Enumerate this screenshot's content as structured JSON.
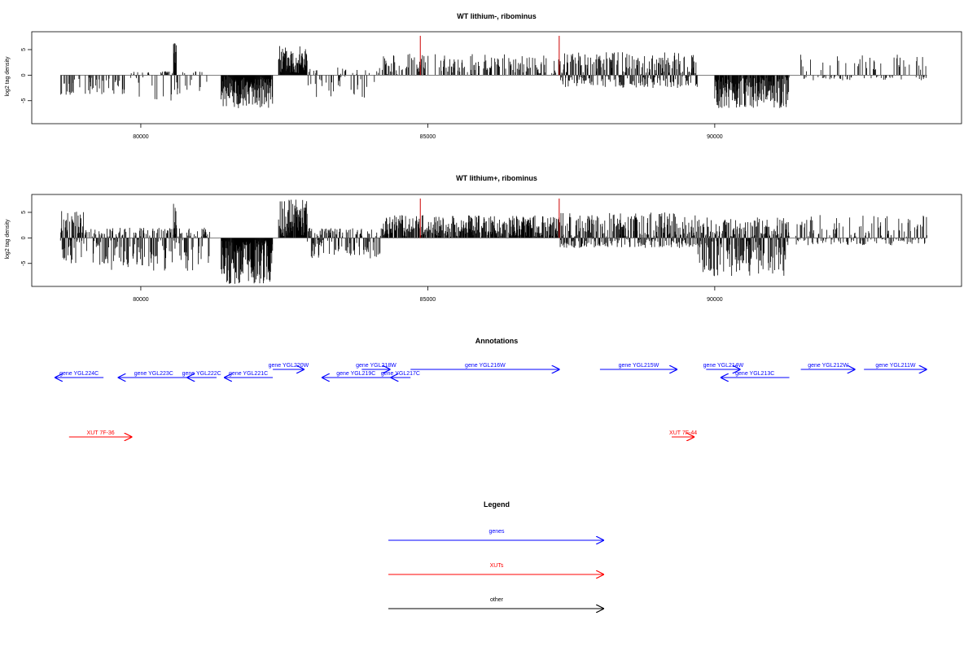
{
  "chart_data": [
    {
      "type": "bar",
      "title": "WT lithium-, ribominus",
      "ylabel": "log2 tag density",
      "xlabel": "",
      "xlim": [
        78100,
        94300
      ],
      "ylim": [
        -9.5,
        8.5
      ],
      "x_ticks": [
        80000,
        85000,
        90000
      ],
      "x_tick_labels": [
        "80000",
        "85000",
        "90000"
      ],
      "y_ticks": [
        -5,
        0,
        5
      ],
      "y_tick_labels": [
        "-5",
        "0",
        "5"
      ],
      "grid": false,
      "highlight_color": "#cc0000",
      "highlights": [
        {
          "x": 84870,
          "y": 7.7
        },
        {
          "x": 87290,
          "y": 7.7
        }
      ],
      "segments": [
        {
          "start": 78600,
          "end": 79700,
          "min": -4.0,
          "max": 0,
          "density": 0.35,
          "seed": 1
        },
        {
          "start": 79700,
          "end": 81200,
          "min": -5.0,
          "max": 0.8,
          "density": 0.3,
          "seed": 2
        },
        {
          "start": 80570,
          "end": 80620,
          "min": 0,
          "max": 6.5,
          "density": 1.0,
          "seed": 3
        },
        {
          "start": 81400,
          "end": 82300,
          "min": -6.5,
          "max": 0,
          "density": 1.0,
          "seed": 4
        },
        {
          "start": 82400,
          "end": 82900,
          "min": 0,
          "max": 5.8,
          "density": 1.0,
          "seed": 5
        },
        {
          "start": 82900,
          "end": 84200,
          "min": -4.5,
          "max": 1.5,
          "density": 0.25,
          "seed": 6
        },
        {
          "start": 84200,
          "end": 87300,
          "min": 0,
          "max": 4.2,
          "density": 0.35,
          "seed": 7
        },
        {
          "start": 87300,
          "end": 89700,
          "min": -2.5,
          "max": 4.5,
          "density": 0.8,
          "seed": 8
        },
        {
          "start": 90000,
          "end": 91300,
          "min": -6.5,
          "max": 0,
          "density": 0.9,
          "seed": 9
        },
        {
          "start": 91500,
          "end": 93700,
          "min": -1.0,
          "max": 4.5,
          "density": 0.3,
          "seed": 10
        }
      ]
    },
    {
      "type": "bar",
      "title": "WT lithium+, ribominus",
      "ylabel": "log2 tag density",
      "xlabel": "",
      "xlim": [
        78100,
        94300
      ],
      "ylim": [
        -9.5,
        8.5
      ],
      "x_ticks": [
        80000,
        85000,
        90000
      ],
      "x_tick_labels": [
        "80000",
        "85000",
        "90000"
      ],
      "y_ticks": [
        -5,
        0,
        5
      ],
      "y_tick_labels": [
        "-5",
        "0",
        "5"
      ],
      "grid": false,
      "highlight_color": "#cc0000",
      "highlights": [
        {
          "x": 84870,
          "y": 7.7
        },
        {
          "x": 87290,
          "y": 7.7
        }
      ],
      "segments": [
        {
          "start": 78600,
          "end": 79000,
          "min": -5.0,
          "max": 5.5,
          "density": 1.0,
          "seed": 11
        },
        {
          "start": 79000,
          "end": 81200,
          "min": -6.5,
          "max": 2.0,
          "density": 0.7,
          "seed": 12
        },
        {
          "start": 80570,
          "end": 80620,
          "min": 0,
          "max": 7.5,
          "density": 1.0,
          "seed": 13
        },
        {
          "start": 81400,
          "end": 82300,
          "min": -9.0,
          "max": 0,
          "density": 1.0,
          "seed": 14
        },
        {
          "start": 82400,
          "end": 82900,
          "min": 0,
          "max": 7.5,
          "density": 1.0,
          "seed": 15
        },
        {
          "start": 82900,
          "end": 84200,
          "min": -4.0,
          "max": 2.0,
          "density": 0.7,
          "seed": 16
        },
        {
          "start": 84200,
          "end": 87300,
          "min": 0,
          "max": 4.5,
          "density": 0.8,
          "seed": 17
        },
        {
          "start": 87300,
          "end": 89700,
          "min": -2.0,
          "max": 5.0,
          "density": 0.9,
          "seed": 18
        },
        {
          "start": 89700,
          "end": 91300,
          "min": -7.5,
          "max": 4.0,
          "density": 1.0,
          "seed": 19
        },
        {
          "start": 91400,
          "end": 93700,
          "min": -1.5,
          "max": 4.5,
          "density": 0.5,
          "seed": 20
        }
      ]
    }
  ],
  "annotations": {
    "title": "Annotations",
    "colors": {
      "gene": "#0000ff",
      "xut": "#ff0000",
      "other": "#000000"
    },
    "genes": [
      {
        "label": "gene YGL224C",
        "start": 78500,
        "end": 79350,
        "strand": "-"
      },
      {
        "label": "gene YGL223C",
        "start": 79600,
        "end": 80850,
        "strand": "-"
      },
      {
        "label": "gene YGL222C",
        "start": 80800,
        "end": 81320,
        "strand": "-"
      },
      {
        "label": "gene YGL221C",
        "start": 81450,
        "end": 82300,
        "strand": "-"
      },
      {
        "label": "gene YGL220W",
        "start": 82300,
        "end": 82850,
        "strand": "+"
      },
      {
        "label": "gene YGL219C",
        "start": 83150,
        "end": 84350,
        "strand": "-"
      },
      {
        "label": "gene YGL218W",
        "start": 83850,
        "end": 84350,
        "strand": "+"
      },
      {
        "label": "gene YGL217C",
        "start": 84350,
        "end": 84700,
        "strand": "-"
      },
      {
        "label": "gene YGL216W",
        "start": 84700,
        "end": 87300,
        "strand": "+"
      },
      {
        "label": "gene YGL215W",
        "start": 88000,
        "end": 89350,
        "strand": "+"
      },
      {
        "label": "gene YGL214W",
        "start": 89850,
        "end": 90450,
        "strand": "+"
      },
      {
        "label": "gene YGL213C",
        "start": 90100,
        "end": 91300,
        "strand": "-"
      },
      {
        "label": "gene YGL212W",
        "start": 91500,
        "end": 92450,
        "strand": "+"
      },
      {
        "label": "gene YGL211W",
        "start": 92600,
        "end": 93700,
        "strand": "+"
      }
    ],
    "xuts": [
      {
        "label": "XUT 7F-36",
        "start": 78750,
        "end": 79850,
        "strand": "+"
      },
      {
        "label": "XUT 7F-44",
        "start": 89250,
        "end": 89650,
        "strand": "+"
      }
    ]
  },
  "legend": {
    "title": "Legend",
    "items": [
      {
        "label": "genes",
        "color": "#0000ff"
      },
      {
        "label": "XUTs",
        "color": "#ff0000"
      },
      {
        "label": "other",
        "color": "#000000"
      }
    ]
  }
}
